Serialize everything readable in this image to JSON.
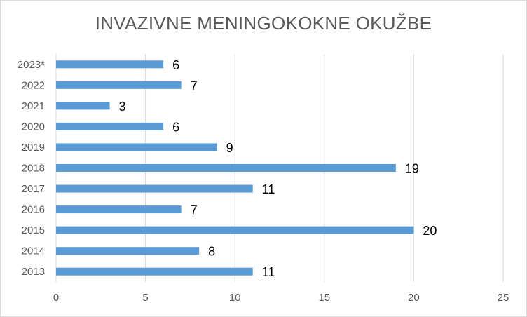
{
  "chart_data": {
    "type": "bar",
    "orientation": "horizontal",
    "title": "INVAZIVNE MENINGOKOKNE OKUŽBE",
    "xlabel": "",
    "ylabel": "",
    "categories": [
      "2023*",
      "2022",
      "2021",
      "2020",
      "2019",
      "2018",
      "2017",
      "2016",
      "2015",
      "2014",
      "2013"
    ],
    "values": [
      6,
      7,
      3,
      6,
      9,
      19,
      11,
      7,
      20,
      8,
      11
    ],
    "xlim": [
      0,
      25
    ],
    "x_ticks": [
      0,
      5,
      10,
      15,
      20,
      25
    ],
    "grid": "vertical",
    "legend": "none",
    "bar_color": "#5b9bd5",
    "grid_color": "#d9d9d9"
  }
}
